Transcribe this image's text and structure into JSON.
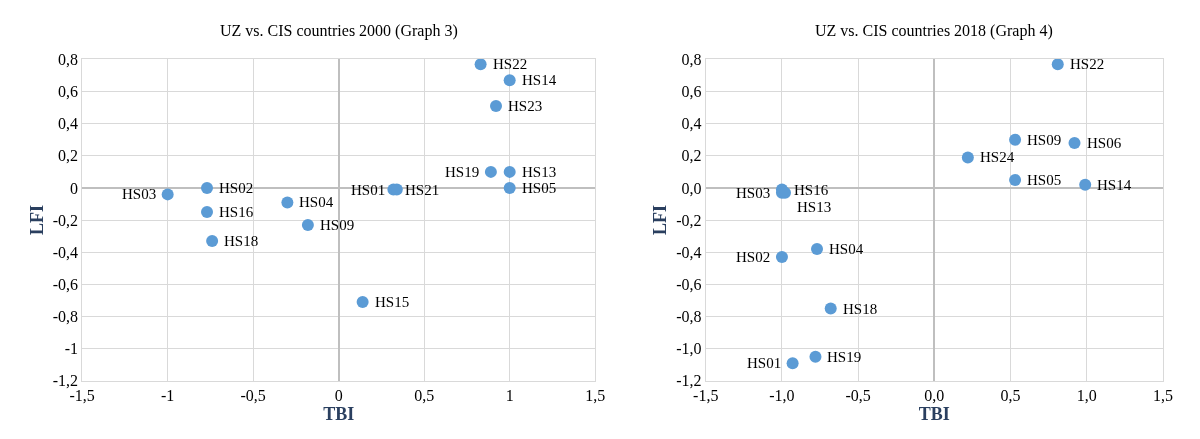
{
  "chart_data": [
    {
      "type": "scatter",
      "title": "UZ vs. CIS countries 2000 (Graph 3)",
      "xlabel": "TBI",
      "ylabel": "LFI",
      "marker": "circle",
      "grid": true,
      "series": [
        {
          "color": "#5b9bd5",
          "x": [
            0.83,
            1.0,
            0.92,
            0.89,
            1.0,
            1.0,
            0.32,
            0.34,
            -0.77,
            -1.0,
            -0.3,
            -0.77,
            -0.74,
            -0.18,
            0.14
          ],
          "values": [
            0.77,
            0.67,
            0.51,
            0.1,
            0.1,
            0.0,
            -0.01,
            -0.01,
            0.0,
            -0.04,
            -0.09,
            -0.15,
            -0.33,
            -0.23,
            -0.71
          ]
        }
      ],
      "annotations": [
        {
          "text": "HS22",
          "x": 0.83,
          "y": 0.77
        },
        {
          "text": "HS14",
          "x": 1.0,
          "y": 0.67
        },
        {
          "text": "HS23",
          "x": 0.92,
          "y": 0.51
        },
        {
          "text": "HS19",
          "x": 0.89,
          "y": 0.1
        },
        {
          "text": "HS13",
          "x": 1.0,
          "y": 0.1
        },
        {
          "text": "HS05",
          "x": 1.0,
          "y": 0.0
        },
        {
          "text": "HS21",
          "x": 0.32,
          "y": -0.01
        },
        {
          "text": "HS01",
          "x": 0.34,
          "y": -0.01
        },
        {
          "text": "HS02",
          "x": -0.77,
          "y": 0.0
        },
        {
          "text": "HS03",
          "x": -1.0,
          "y": -0.04
        },
        {
          "text": "HS04",
          "x": -0.3,
          "y": -0.09
        },
        {
          "text": "HS16",
          "x": -0.77,
          "y": -0.15
        },
        {
          "text": "HS18",
          "x": -0.74,
          "y": -0.33
        },
        {
          "text": "HS09",
          "x": -0.18,
          "y": -0.23
        },
        {
          "text": "HS15",
          "x": 0.14,
          "y": -0.71
        }
      ],
      "xlim": [
        -1.5,
        1.5
      ],
      "xticks": [
        {
          "value": -1.5,
          "label": "-1,5"
        },
        -1,
        {
          "value": -0.5,
          "label": "-0,5"
        },
        0,
        {
          "value": 0.5,
          "label": "0,5"
        },
        1,
        {
          "value": 1.5,
          "label": "1,5"
        }
      ],
      "ylim": [
        -1.2,
        0.8
      ],
      "yticks": [
        {
          "value": -1.2,
          "label": "-1,2"
        },
        -1,
        {
          "value": -0.8,
          "label": "-0,8"
        },
        {
          "value": -0.6,
          "label": "-0,6"
        },
        {
          "value": -0.4,
          "label": "-0,4"
        },
        {
          "value": -0.2,
          "label": "-0,2"
        },
        0,
        {
          "value": 0.2,
          "label": "0,2"
        },
        {
          "value": 0.4,
          "label": "0,4"
        },
        {
          "value": 0.6,
          "label": "0,6"
        },
        {
          "value": 0.8,
          "label": "0,8"
        }
      ]
    },
    {
      "type": "scatter",
      "title": "UZ vs. CIS countries 2018 (Graph 4)",
      "xlabel": "TBI",
      "ylabel": "LFI",
      "marker": "circle",
      "grid": true,
      "series": [
        {
          "color": "#5b9bd5",
          "x": [
            0.81,
            0.53,
            0.92,
            0.22,
            0.53,
            0.99,
            -1.0,
            -1.0,
            -0.98,
            -0.77,
            -1.0,
            -0.68,
            -0.78,
            -0.93
          ],
          "values": [
            0.77,
            0.3,
            0.28,
            0.19,
            0.05,
            0.02,
            -0.01,
            -0.03,
            -0.03,
            -0.38,
            -0.43,
            -0.75,
            -1.05,
            -1.09
          ]
        }
      ],
      "annotations": [
        {
          "text": "HS22",
          "x": 0.81,
          "y": 0.77
        },
        {
          "text": "HS09",
          "x": 0.53,
          "y": 0.3
        },
        {
          "text": "HS06",
          "x": 0.92,
          "y": 0.28
        },
        {
          "text": "HS24",
          "x": 0.22,
          "y": 0.19
        },
        {
          "text": "HS05",
          "x": 0.53,
          "y": 0.05
        },
        {
          "text": "HS14",
          "x": 0.99,
          "y": 0.02
        },
        {
          "text": "HS16",
          "x": -1.0,
          "y": -0.01
        },
        {
          "text": "HS03",
          "x": -1.0,
          "y": -0.03
        },
        {
          "text": "HS13",
          "x": -0.98,
          "y": -0.03
        },
        {
          "text": "HS04",
          "x": -0.77,
          "y": -0.38
        },
        {
          "text": "HS02",
          "x": -1.0,
          "y": -0.43
        },
        {
          "text": "HS18",
          "x": -0.68,
          "y": -0.75
        },
        {
          "text": "HS19",
          "x": -0.78,
          "y": -1.05
        },
        {
          "text": "HS01",
          "x": -0.93,
          "y": -1.09
        }
      ],
      "xlim": [
        -1.5,
        1.5
      ],
      "xticks": [
        {
          "value": -1.5,
          "label": "-1,5"
        },
        {
          "value": -1,
          "label": "-1,0"
        },
        {
          "value": -0.5,
          "label": "-0,5"
        },
        {
          "value": 0,
          "label": "0,0"
        },
        {
          "value": 0.5,
          "label": "0,5"
        },
        {
          "value": 1,
          "label": "1,0"
        },
        {
          "value": 1.5,
          "label": "1,5"
        }
      ],
      "ylim": [
        -1.2,
        0.8
      ],
      "yticks": [
        {
          "value": -1.2,
          "label": "-1,2"
        },
        {
          "value": -1,
          "label": "-1,0"
        },
        {
          "value": -0.8,
          "label": "-0,8"
        },
        {
          "value": -0.6,
          "label": "-0,6"
        },
        {
          "value": -0.4,
          "label": "-0,4"
        },
        {
          "value": -0.2,
          "label": "-0,2"
        },
        {
          "value": 0,
          "label": "0,0"
        },
        {
          "value": 0.2,
          "label": "0,2"
        },
        {
          "value": 0.4,
          "label": "0,4"
        },
        {
          "value": 0.6,
          "label": "0,6"
        },
        {
          "value": 0.8,
          "label": "0,8"
        }
      ]
    }
  ]
}
